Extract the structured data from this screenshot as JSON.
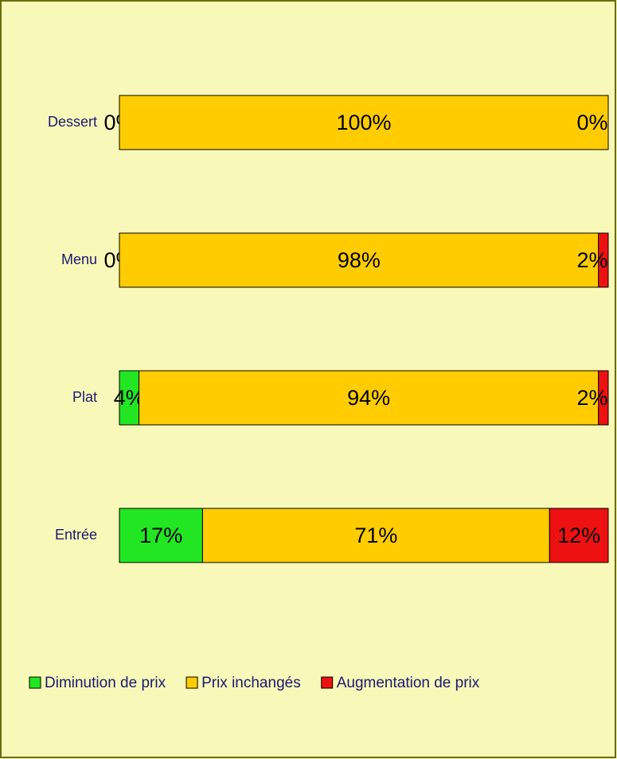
{
  "chart_data": {
    "type": "stacked-bar-horizontal",
    "categories": [
      "Dessert",
      "Menu",
      "Plat",
      "Entrée"
    ],
    "xlim": [
      0,
      100
    ],
    "legend": "bottom",
    "series": [
      {
        "name": "Diminution de prix",
        "color": "#22e622",
        "values": [
          0,
          0,
          4,
          17
        ],
        "value_labels": [
          "0%",
          "0%",
          "4%",
          "17%"
        ]
      },
      {
        "name": "Prix inchangés",
        "color": "#ffcc00",
        "values": [
          100,
          98,
          94,
          71
        ],
        "value_labels": [
          "100%",
          "98%",
          "94%",
          "71%"
        ]
      },
      {
        "name": "Augmentation de prix",
        "color": "#ee1111",
        "values": [
          0,
          2,
          2,
          12
        ],
        "value_labels": [
          "0%",
          "2%",
          "2%",
          "12%"
        ]
      }
    ]
  }
}
